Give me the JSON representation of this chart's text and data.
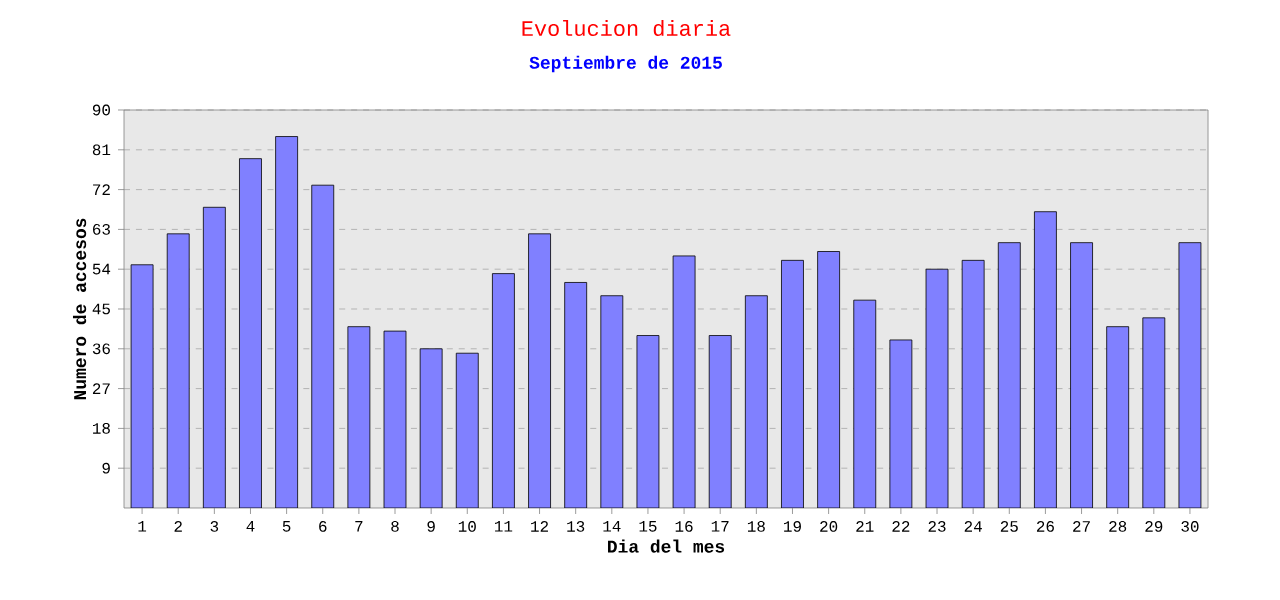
{
  "chart_data": {
    "type": "bar",
    "title": "Evolucion diaria",
    "subtitle": "Septiembre de 2015",
    "xlabel": "Dia del mes",
    "ylabel": "Numero de accesos",
    "categories": [
      "1",
      "2",
      "3",
      "4",
      "5",
      "6",
      "7",
      "8",
      "9",
      "10",
      "11",
      "12",
      "13",
      "14",
      "15",
      "16",
      "17",
      "18",
      "19",
      "20",
      "21",
      "22",
      "23",
      "24",
      "25",
      "26",
      "27",
      "28",
      "29",
      "30"
    ],
    "values": [
      55,
      62,
      68,
      79,
      84,
      73,
      41,
      40,
      36,
      35,
      53,
      62,
      51,
      48,
      39,
      57,
      39,
      48,
      56,
      58,
      47,
      38,
      54,
      56,
      60,
      67,
      60,
      41,
      43,
      60
    ],
    "color": "#8080ff",
    "ylim": [
      0,
      90
    ],
    "yticks": [
      9,
      18,
      27,
      36,
      45,
      54,
      63,
      72,
      81,
      90
    ],
    "grid": "y"
  }
}
